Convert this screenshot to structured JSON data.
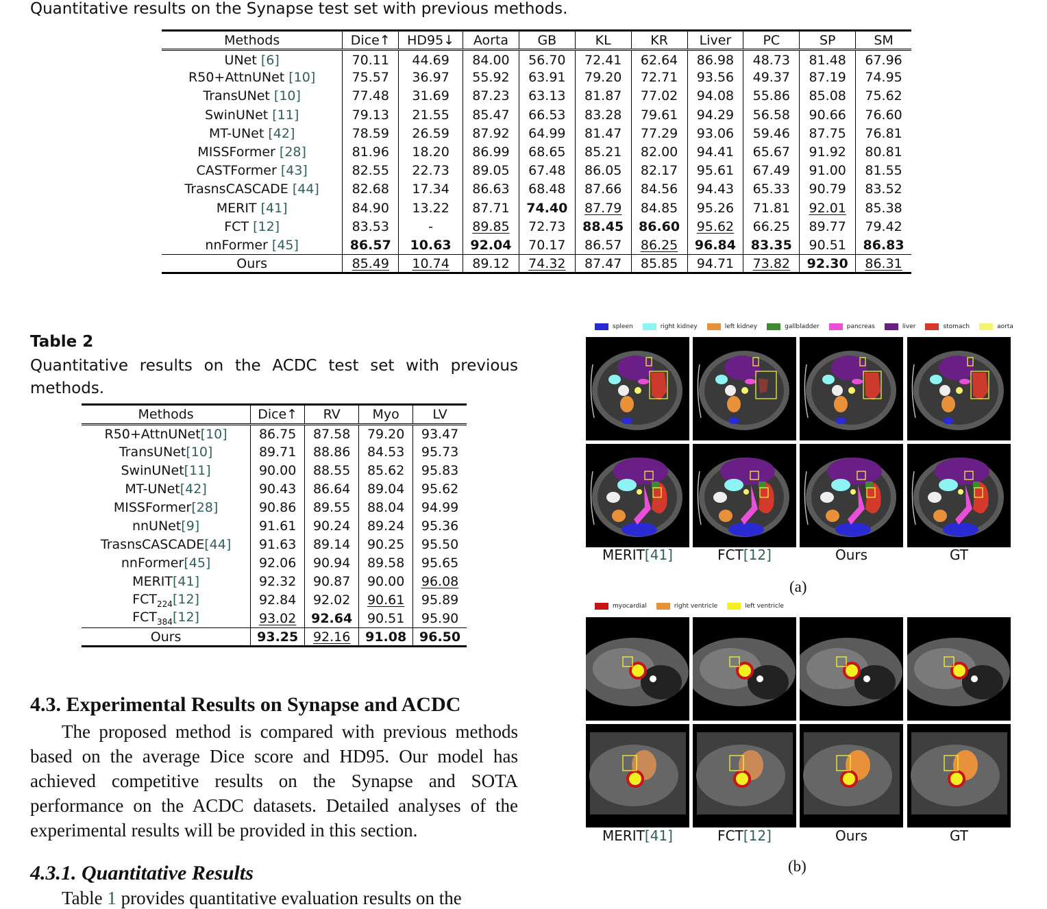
{
  "table1": {
    "caption": "Quantitative results on the Synapse test set with previous methods.",
    "headers": [
      "Methods",
      "Dice↑",
      "HD95↓",
      "Aorta",
      "GB",
      "KL",
      "KR",
      "Liver",
      "PC",
      "SP",
      "SM"
    ],
    "rows": [
      {
        "name": "UNet ",
        "ref": "[6]",
        "vals": [
          "70.11",
          "44.69",
          "84.00",
          "56.70",
          "72.41",
          "62.64",
          "86.98",
          "48.73",
          "81.48",
          "67.96"
        ]
      },
      {
        "name": "R50+AttnUNet ",
        "ref": "[10]",
        "vals": [
          "75.57",
          "36.97",
          "55.92",
          "63.91",
          "79.20",
          "72.71",
          "93.56",
          "49.37",
          "87.19",
          "74.95"
        ]
      },
      {
        "name": "TransUNet ",
        "ref": "[10]",
        "vals": [
          "77.48",
          "31.69",
          "87.23",
          "63.13",
          "81.87",
          "77.02",
          "94.08",
          "55.86",
          "85.08",
          "75.62"
        ]
      },
      {
        "name": "SwinUNet ",
        "ref": "[11]",
        "vals": [
          "79.13",
          "21.55",
          "85.47",
          "66.53",
          "83.28",
          "79.61",
          "94.29",
          "56.58",
          "90.66",
          "76.60"
        ]
      },
      {
        "name": "MT-UNet ",
        "ref": "[42]",
        "vals": [
          "78.59",
          "26.59",
          "87.92",
          "64.99",
          "81.47",
          "77.29",
          "93.06",
          "59.46",
          "87.75",
          "76.81"
        ]
      },
      {
        "name": "MISSFormer ",
        "ref": "[28]",
        "vals": [
          "81.96",
          "18.20",
          "86.99",
          "68.65",
          "85.21",
          "82.00",
          "94.41",
          "65.67",
          "91.92",
          "80.81"
        ]
      },
      {
        "name": "CASTFormer ",
        "ref": "[43]",
        "vals": [
          "82.55",
          "22.73",
          "89.05",
          "67.48",
          "86.05",
          "82.17",
          "95.61",
          "67.49",
          "91.00",
          "81.55"
        ]
      },
      {
        "name": "TrasnsCASCADE ",
        "ref": "[44]",
        "vals": [
          "82.68",
          "17.34",
          "86.63",
          "68.48",
          "87.66",
          "84.56",
          "94.43",
          "65.33",
          "90.79",
          "83.52"
        ]
      },
      {
        "name": "MERIT ",
        "ref": "[41]",
        "vals": [
          "84.90",
          "13.22",
          "87.71",
          "74.40",
          "87.79",
          "84.85",
          "95.26",
          "71.81",
          "92.01",
          "85.38"
        ]
      },
      {
        "name": "FCT ",
        "ref": "[12]",
        "vals": [
          "83.53",
          "-",
          "89.85",
          "72.73",
          "88.45",
          "86.60",
          "95.62",
          "66.25",
          "89.77",
          "79.42"
        ]
      },
      {
        "name": "nnFormer ",
        "ref": "[45]",
        "vals": [
          "86.57",
          "10.63",
          "92.04",
          "70.17",
          "86.57",
          "86.25",
          "96.84",
          "83.35",
          "90.51",
          "86.83"
        ]
      },
      {
        "name": "Ours",
        "ref": "",
        "vals": [
          "85.49",
          "10.74",
          "89.12",
          "74.32",
          "87.47",
          "85.85",
          "94.71",
          "73.82",
          "92.30",
          "86.31"
        ]
      }
    ],
    "bold": [
      "8-3",
      "9-4",
      "9-5",
      "10-0",
      "10-1",
      "10-2",
      "10-6",
      "10-7",
      "10-9",
      "11-8"
    ],
    "underline": [
      "8-4",
      "8-8",
      "9-2",
      "9-6",
      "10-5",
      "11-0",
      "11-1",
      "11-3",
      "11-7",
      "11-9"
    ]
  },
  "table2": {
    "label": "Table 2",
    "caption": "Quantitative results on the ACDC test set with previous methods.",
    "headers": [
      "Methods",
      "Dice↑",
      "RV",
      "Myo",
      "LV"
    ],
    "rows": [
      {
        "name": "R50+AttnUNet",
        "sub": "",
        "ref": "[10]",
        "vals": [
          "86.75",
          "87.58",
          "79.20",
          "93.47"
        ]
      },
      {
        "name": "TransUNet",
        "sub": "",
        "ref": "[10]",
        "vals": [
          "89.71",
          "88.86",
          "84.53",
          "95.73"
        ]
      },
      {
        "name": "SwinUNet",
        "sub": "",
        "ref": "[11]",
        "vals": [
          "90.00",
          "88.55",
          "85.62",
          "95.83"
        ]
      },
      {
        "name": "MT-UNet",
        "sub": "",
        "ref": "[42]",
        "vals": [
          "90.43",
          "86.64",
          "89.04",
          "95.62"
        ]
      },
      {
        "name": "MISSFormer",
        "sub": "",
        "ref": "[28]",
        "vals": [
          "90.86",
          "89.55",
          "88.04",
          "94.99"
        ]
      },
      {
        "name": "nnUNet",
        "sub": "",
        "ref": "[9]",
        "vals": [
          "91.61",
          "90.24",
          "89.24",
          "95.36"
        ]
      },
      {
        "name": "TrasnsCASCADE",
        "sub": "",
        "ref": "[44]",
        "vals": [
          "91.63",
          "89.14",
          "90.25",
          "95.50"
        ]
      },
      {
        "name": "nnFormer",
        "sub": "",
        "ref": "[45]",
        "vals": [
          "92.06",
          "90.94",
          "89.58",
          "95.65"
        ]
      },
      {
        "name": "MERIT",
        "sub": "",
        "ref": "[41]",
        "vals": [
          "92.32",
          "90.87",
          "90.00",
          "96.08"
        ]
      },
      {
        "name": "FCT",
        "sub": "224",
        "ref": "[12]",
        "vals": [
          "92.84",
          "92.02",
          "90.61",
          "95.89"
        ]
      },
      {
        "name": "FCT",
        "sub": "384",
        "ref": "[12]",
        "vals": [
          "93.02",
          "92.64",
          "90.51",
          "95.90"
        ]
      },
      {
        "name": "Ours",
        "sub": "",
        "ref": "",
        "vals": [
          "93.25",
          "92.16",
          "91.08",
          "96.50"
        ]
      }
    ],
    "bold": [
      "10-1",
      "11-0",
      "11-2",
      "11-3"
    ],
    "underline": [
      "8-3",
      "9-2",
      "10-0",
      "11-1"
    ]
  },
  "section": {
    "heading": "4.3.  Experimental Results on Synapse and ACDC",
    "paragraph": "The proposed method is compared with previous methods based on the average Dice score and HD95. Our model has achieved competitive results on the Synapse and SOTA performance on the ACDC datasets. Detailed analyses of the experimental results will be provided in this section.",
    "subheading": "4.3.1.  Quantitative Results",
    "cut_line_start": "Table ",
    "cut_line_ref": "1",
    "cut_line_end": " provides quantitative evaluation results on the"
  },
  "figure": {
    "legend_a": [
      {
        "label": "spleen",
        "color": "#2b2bd6"
      },
      {
        "label": "right kidney",
        "color": "#8ef3f3"
      },
      {
        "label": "left kidney",
        "color": "#e8913a"
      },
      {
        "label": "gallbladder",
        "color": "#3e8a2f"
      },
      {
        "label": "pancreas",
        "color": "#e94fd8"
      },
      {
        "label": "liver",
        "color": "#6a1f86"
      },
      {
        "label": "stomach",
        "color": "#d33a2c"
      },
      {
        "label": "aorta",
        "color": "#f7f270"
      }
    ],
    "legend_b": [
      {
        "label": "myocardial",
        "color": "#c81414"
      },
      {
        "label": "right ventricle",
        "color": "#e8913a"
      },
      {
        "label": "left ventricle",
        "color": "#f5f020"
      }
    ],
    "columns": [
      {
        "name": "MERIT",
        "ref": "[41]"
      },
      {
        "name": "FCT",
        "ref": "[12]"
      },
      {
        "name": "Ours",
        "ref": ""
      },
      {
        "name": "GT",
        "ref": ""
      }
    ],
    "sublabel_a": "(a)",
    "sublabel_b": "(b)"
  }
}
